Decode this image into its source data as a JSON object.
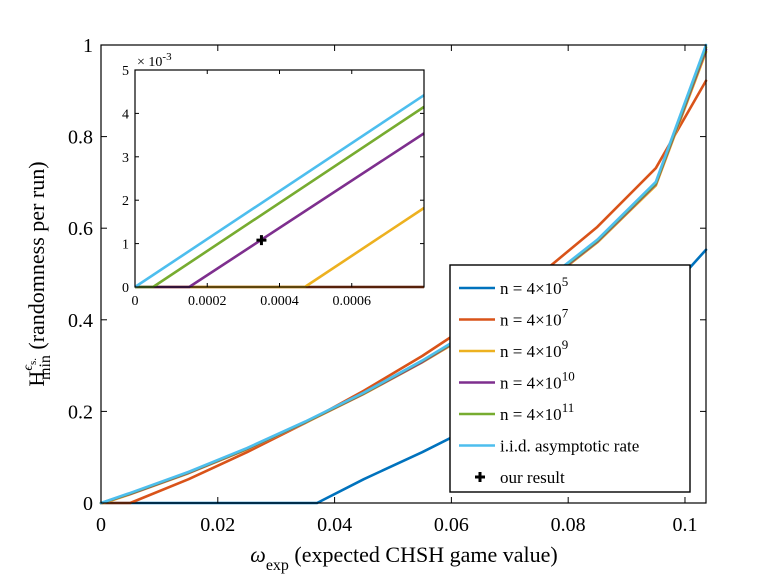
{
  "chart_data": [
    {
      "type": "line",
      "title": "",
      "xlabel_symbol": "ω",
      "xlabel_sub": "exp",
      "xlabel_text": " (expected CHSH game value)",
      "ylabel_base": "H",
      "ylabel_sup": "ϵ",
      "ylabel_supsub": "s.",
      "ylabel_sub": "min",
      "ylabel_text": " (randomness per run)",
      "xlim": [
        0,
        0.1036
      ],
      "ylim": [
        0,
        1
      ],
      "xticks": [
        0,
        0.02,
        0.04,
        0.06,
        0.08,
        0.1
      ],
      "xtick_labels": [
        "0",
        "0.02",
        "0.04",
        "0.06",
        "0.08",
        "0.1"
      ],
      "yticks": [
        0,
        0.2,
        0.4,
        0.6,
        0.8,
        1
      ],
      "ytick_labels": [
        "0",
        "0.2",
        "0.4",
        "0.6",
        "0.8",
        "1"
      ],
      "legend_position": "bottom-right",
      "series": [
        {
          "name": "n = 4×10^5",
          "label_base": "n = 4×10",
          "label_exp": "5",
          "color": "#0072BD",
          "x": [
            0,
            0.037,
            0.045,
            0.055,
            0.065,
            0.075,
            0.085,
            0.095,
            0.1036
          ],
          "y": [
            0,
            0,
            0.052,
            0.111,
            0.175,
            0.248,
            0.331,
            0.431,
            0.553
          ]
        },
        {
          "name": "n = 4×10^7",
          "label_base": "n = 4×10",
          "label_exp": "7",
          "color": "#D95319",
          "x": [
            0,
            0.005,
            0.015,
            0.025,
            0.035,
            0.045,
            0.055,
            0.065,
            0.075,
            0.085,
            0.095,
            0.1036
          ],
          "y": [
            0,
            0,
            0.052,
            0.111,
            0.175,
            0.245,
            0.321,
            0.405,
            0.497,
            0.603,
            0.731,
            0.922
          ]
        },
        {
          "name": "n = 4×10^9",
          "label_base": "n = 4×10",
          "label_exp": "9",
          "color": "#EDB120",
          "x": [
            0,
            0.00047,
            0.005,
            0.015,
            0.025,
            0.035,
            0.045,
            0.055,
            0.065,
            0.075,
            0.085,
            0.095,
            0.1036
          ],
          "y": [
            0,
            0,
            0.019,
            0.065,
            0.117,
            0.175,
            0.238,
            0.307,
            0.383,
            0.469,
            0.569,
            0.693,
            0.985
          ]
        },
        {
          "name": "n = 4×10^10",
          "label_base": "n = 4×10",
          "label_exp": "10",
          "color": "#7E2F8E",
          "x": [
            0,
            0.00015,
            0.005,
            0.015,
            0.025,
            0.035,
            0.045,
            0.055,
            0.065,
            0.075,
            0.085,
            0.095,
            0.1036
          ],
          "y": [
            0,
            0,
            0.02,
            0.066,
            0.118,
            0.176,
            0.239,
            0.308,
            0.385,
            0.471,
            0.571,
            0.696,
            0.99
          ]
        },
        {
          "name": "n = 4×10^11",
          "label_base": "n = 4×10",
          "label_exp": "11",
          "color": "#77AC30",
          "x": [
            0,
            5e-05,
            0.005,
            0.015,
            0.025,
            0.035,
            0.045,
            0.055,
            0.065,
            0.075,
            0.085,
            0.095,
            0.1036
          ],
          "y": [
            0,
            0,
            0.021,
            0.067,
            0.119,
            0.177,
            0.24,
            0.31,
            0.386,
            0.473,
            0.573,
            0.698,
            0.995
          ]
        },
        {
          "name": "i.i.d. asymptotic rate",
          "label_base": "i.i.d. asymptotic rate",
          "label_exp": "",
          "color": "#4DBEEE",
          "x": [
            0,
            0.005,
            0.015,
            0.025,
            0.035,
            0.045,
            0.055,
            0.065,
            0.075,
            0.085,
            0.095,
            0.1036
          ],
          "y": [
            0,
            0.022,
            0.068,
            0.12,
            0.178,
            0.241,
            0.311,
            0.388,
            0.475,
            0.575,
            0.701,
            1.0
          ]
        }
      ],
      "markers": [
        {
          "name": "our result",
          "label_base": "our result",
          "label_exp": "",
          "marker": "+",
          "color": "#000000",
          "x": 0.00035,
          "y": 0.00108
        }
      ]
    },
    {
      "type": "line",
      "role": "inset",
      "xlim": [
        0,
        0.0008
      ],
      "ylim": [
        0,
        0.005
      ],
      "y_scale_label": "× 10",
      "y_scale_exp": "-3",
      "xticks": [
        0,
        0.0002,
        0.0004,
        0.0006
      ],
      "xtick_labels": [
        "0",
        "0.0002",
        "0.0004",
        "0.0006"
      ],
      "yticks": [
        0,
        0.001,
        0.002,
        0.003,
        0.004,
        0.005
      ],
      "ytick_labels": [
        "0",
        "1",
        "2",
        "3",
        "4",
        "5"
      ],
      "series": [
        {
          "name": "n = 4×10^5",
          "color": "#0072BD",
          "x": [
            0,
            0.0008
          ],
          "y": [
            0,
            0
          ]
        },
        {
          "name": "n = 4×10^7",
          "color": "#D95319",
          "x": [
            0,
            0.0008
          ],
          "y": [
            0,
            0
          ]
        },
        {
          "name": "n = 4×10^9",
          "color": "#EDB120",
          "x": [
            0,
            0.00047,
            0.0008
          ],
          "y": [
            0,
            0,
            0.00182
          ]
        },
        {
          "name": "n = 4×10^10",
          "color": "#7E2F8E",
          "x": [
            0,
            0.00015,
            0.0008
          ],
          "y": [
            0,
            0,
            0.00354
          ]
        },
        {
          "name": "n = 4×10^11",
          "color": "#77AC30",
          "x": [
            0,
            5e-05,
            0.0008
          ],
          "y": [
            0,
            0,
            0.00415
          ]
        },
        {
          "name": "i.i.d. asymptotic rate",
          "color": "#4DBEEE",
          "x": [
            0,
            0.0008
          ],
          "y": [
            0,
            0.00442
          ]
        }
      ],
      "markers": [
        {
          "name": "our result",
          "marker": "+",
          "color": "#000000",
          "x": 0.00035,
          "y": 0.00108
        }
      ]
    }
  ]
}
